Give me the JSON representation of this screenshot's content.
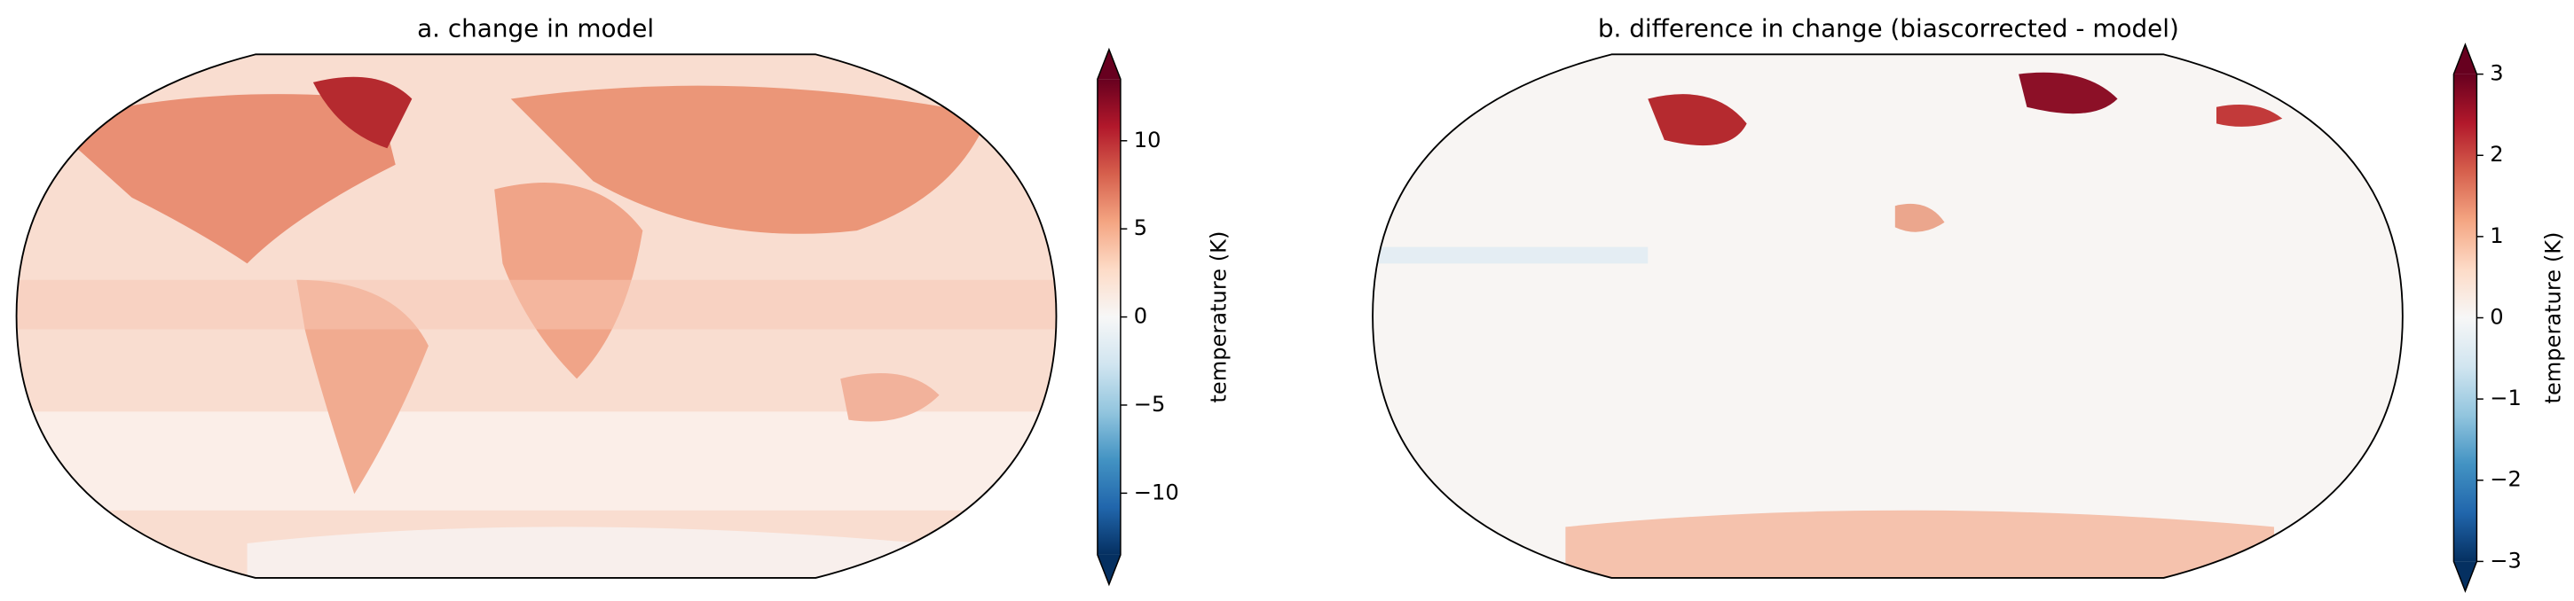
{
  "chart_data": [
    {
      "type": "map",
      "title": "a. change in model",
      "colorbar_label": "temperature (K)",
      "ylim": [
        -13.5,
        13.5
      ],
      "yticks": [
        {
          "value": -10,
          "label": "−10"
        },
        {
          "value": -5,
          "label": "−5"
        },
        0,
        5,
        10
      ],
      "colormap": [
        "#053061",
        "#2166ac",
        "#4393c3",
        "#92c5de",
        "#d1e5f0",
        "#f7f7f7",
        "#fddbc7",
        "#f4a582",
        "#d6604d",
        "#b2182b",
        "#67001f"
      ]
    },
    {
      "type": "map",
      "title": "b. difference in change (biascorrected - model)",
      "colorbar_label": "temperature (K)",
      "ylim": [
        -3,
        3
      ],
      "yticks": [
        {
          "value": -3,
          "label": "−3"
        },
        {
          "value": -2,
          "label": "−2"
        },
        {
          "value": -1,
          "label": "−1"
        },
        0,
        1,
        2,
        3
      ],
      "colormap": [
        "#053061",
        "#2166ac",
        "#4393c3",
        "#92c5de",
        "#d1e5f0",
        "#f7f7f7",
        "#fddbc7",
        "#f4a582",
        "#d6604d",
        "#b2182b",
        "#67001f"
      ]
    }
  ]
}
